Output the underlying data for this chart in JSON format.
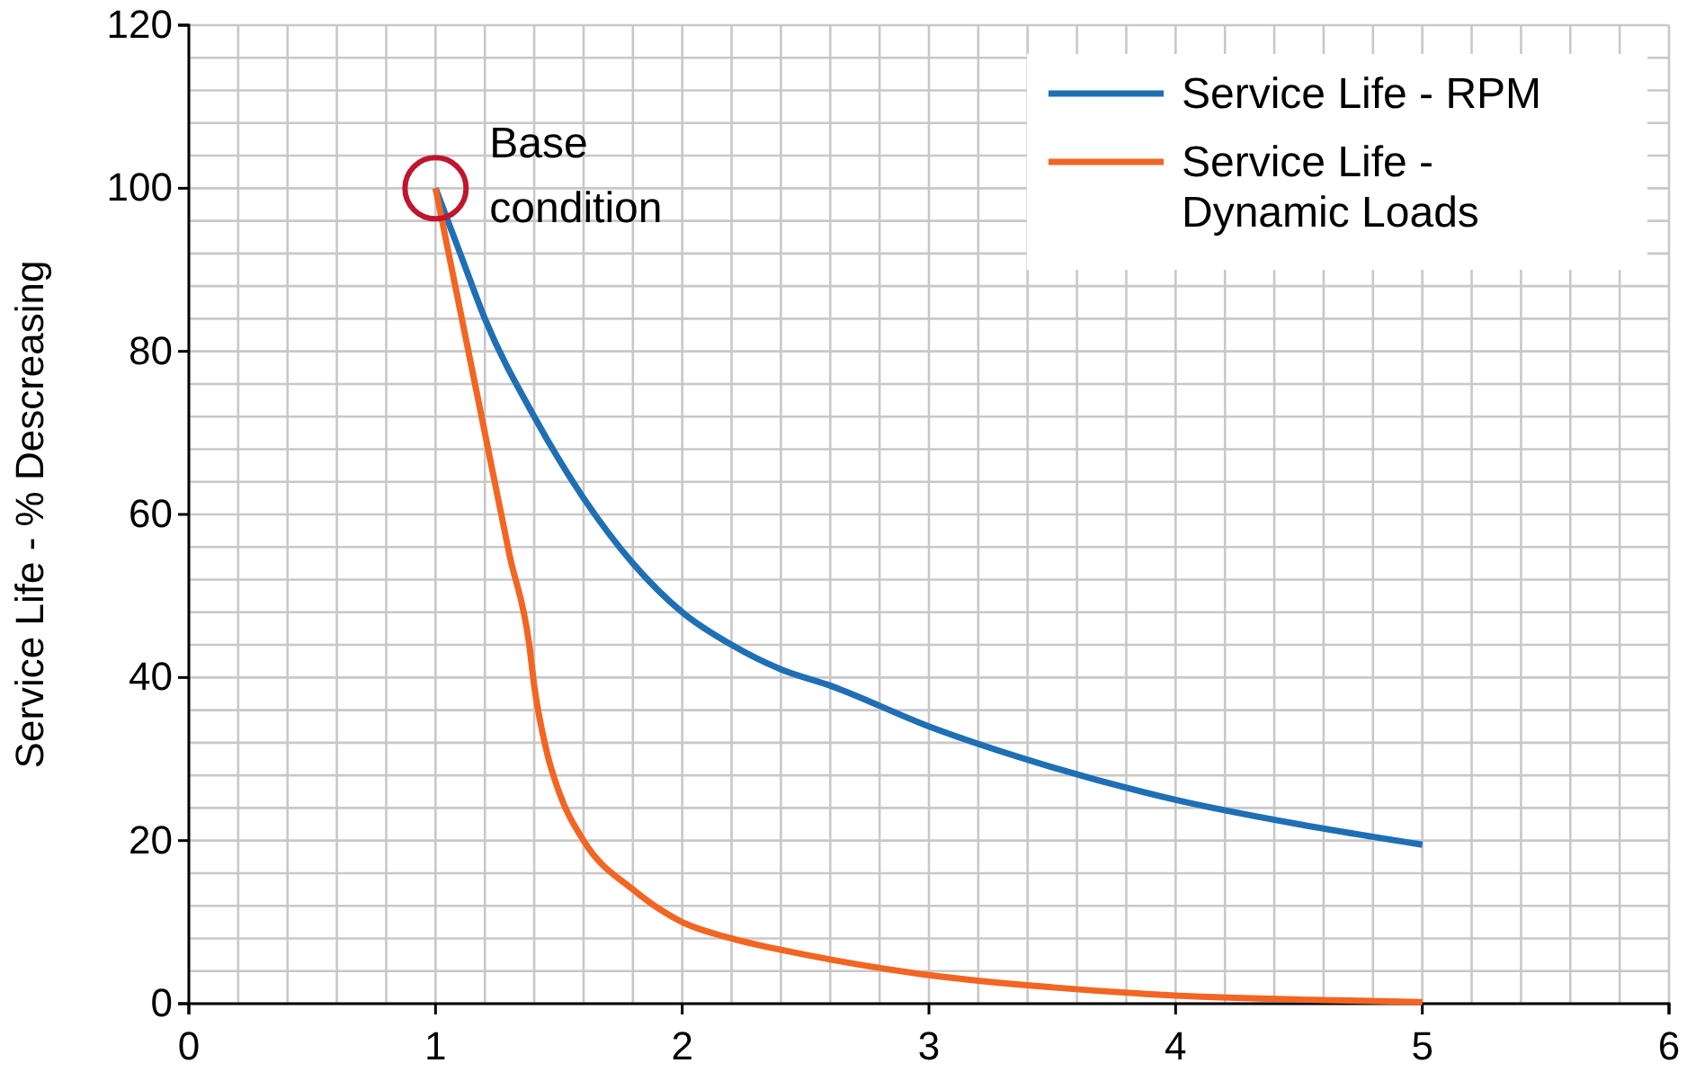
{
  "chart_data": {
    "type": "line",
    "ylabel": "Service Life - % Descreasing",
    "xlim": [
      0,
      6
    ],
    "xticks": [
      0,
      1,
      2,
      3,
      4,
      5,
      6
    ],
    "ylim": [
      0,
      120
    ],
    "yticks": [
      0,
      20,
      40,
      60,
      80,
      100,
      120
    ],
    "grid": true,
    "legend": "top right",
    "series": [
      {
        "name": "Service Life - RPM",
        "color": "#1f6fb5",
        "x": [
          1,
          1.1,
          1.2,
          1.4,
          1.6,
          1.8,
          2,
          2.2,
          2.4,
          2.6,
          3,
          3.5,
          4,
          4.5,
          5
        ],
        "values": [
          100,
          92,
          84,
          72,
          62,
          54,
          48,
          44,
          41,
          39,
          34,
          29,
          25,
          22,
          19.5
        ]
      },
      {
        "name": "Service Life - Dynamic Loads",
        "color": "#f26522",
        "x": [
          1,
          1.1,
          1.2,
          1.3,
          1.38,
          1.4,
          1.45,
          1.5,
          1.6,
          1.8,
          2,
          2.2,
          2.5,
          3,
          3.5,
          4,
          4.5,
          5
        ],
        "values": [
          100,
          85,
          70,
          55,
          44,
          39,
          31,
          26,
          20,
          14,
          10,
          8,
          6,
          3.5,
          2,
          1,
          0.5,
          0.2
        ]
      }
    ],
    "annotations": [
      {
        "text": "Base condition",
        "x": 1,
        "y": 100
      }
    ]
  }
}
